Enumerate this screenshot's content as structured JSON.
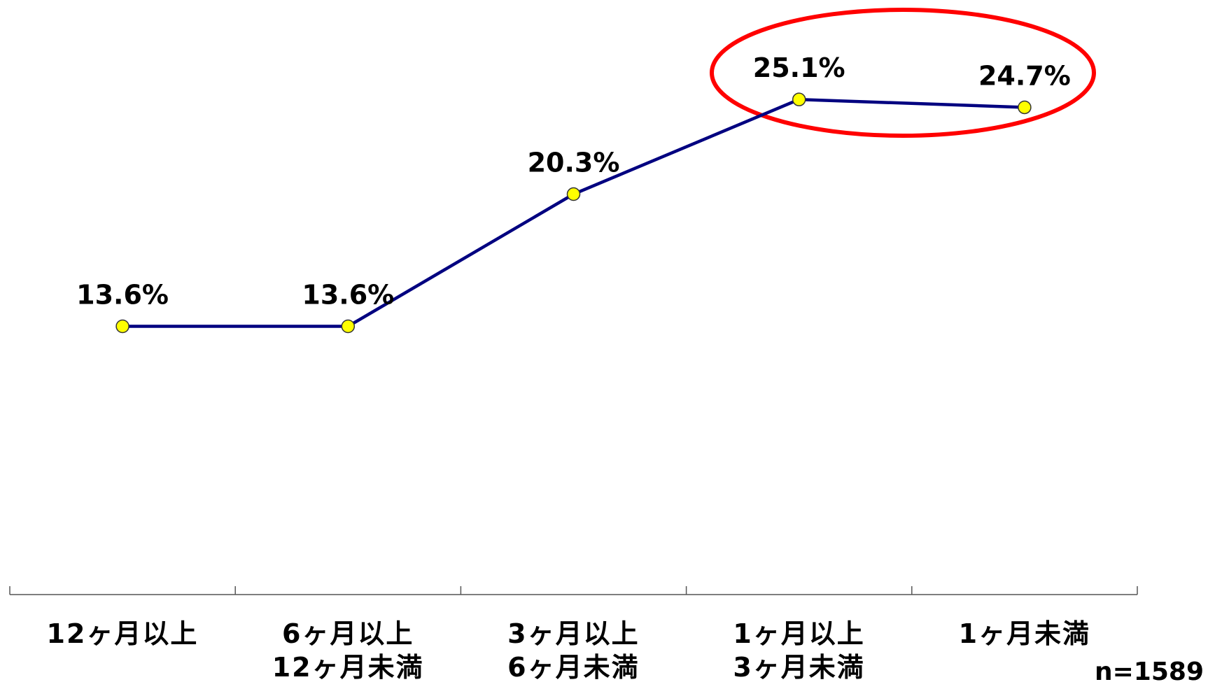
{
  "chart_data": {
    "type": "line",
    "categories": [
      "12ヶ月以上",
      "6ヶ月以上\n12ヶ月未満",
      "3ヶ月以上\n6ヶ月未満",
      "1ヶ月以上\n3ヶ月未満",
      "1ヶ月未満"
    ],
    "series": [
      {
        "color": "#000080",
        "marker_color": "#ffff00",
        "values": [
          13.6,
          13.6,
          20.3,
          25.1,
          24.7
        ],
        "value_labels": [
          "13.6%",
          "13.6%",
          "20.3%",
          "25.1%",
          "24.7%"
        ]
      }
    ],
    "ylim": [
      0,
      30
    ],
    "annotation": "n=1589"
  }
}
